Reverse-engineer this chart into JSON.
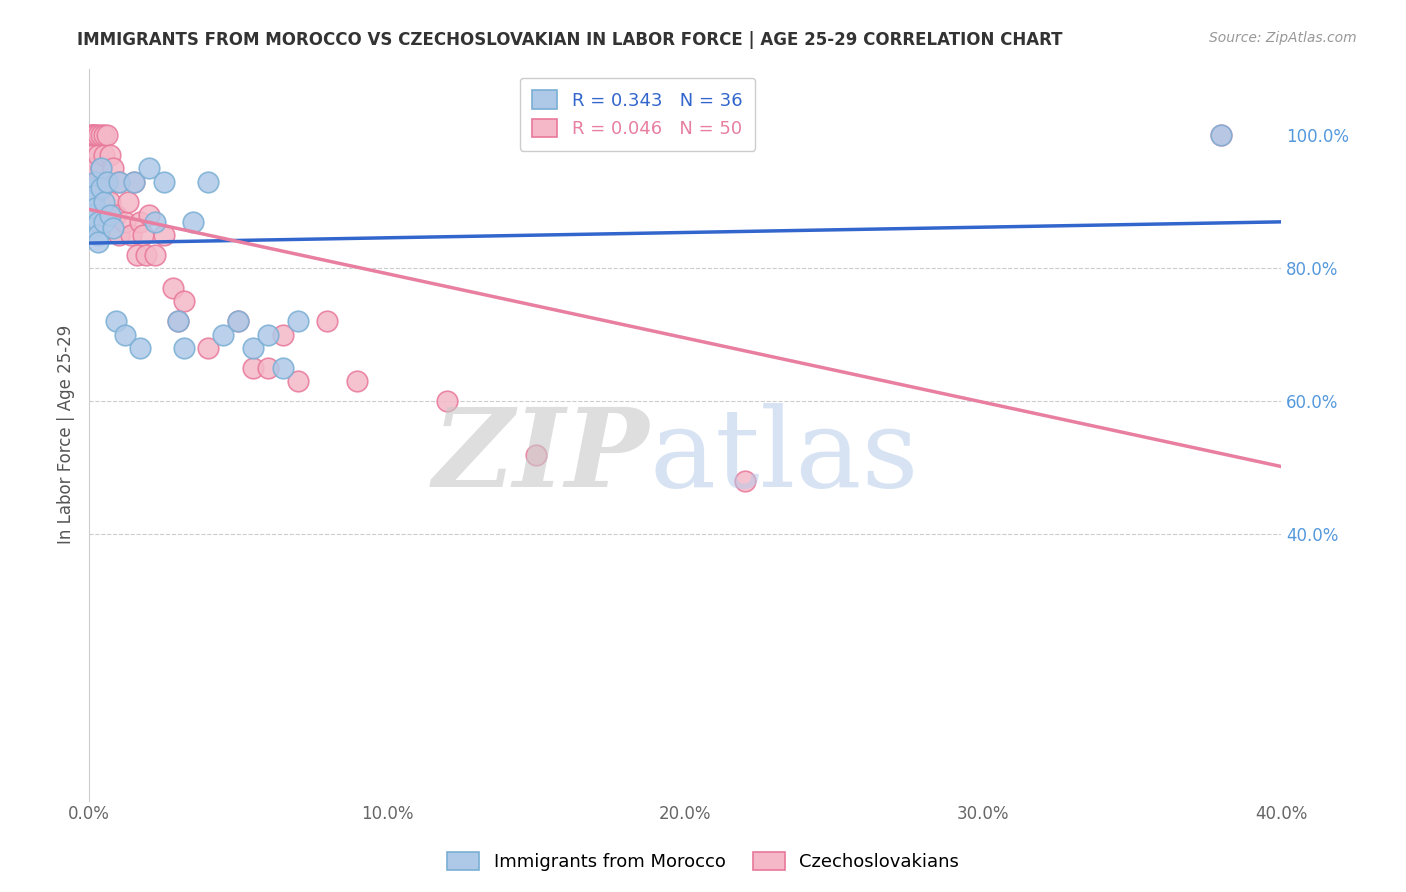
{
  "title": "IMMIGRANTS FROM MOROCCO VS CZECHOSLOVAKIAN IN LABOR FORCE | AGE 25-29 CORRELATION CHART",
  "source": "Source: ZipAtlas.com",
  "ylabel": "In Labor Force | Age 25-29",
  "xlim": [
    0.0,
    0.4
  ],
  "ylim": [
    0.0,
    1.1
  ],
  "xtick_labels": [
    "0.0%",
    "10.0%",
    "20.0%",
    "30.0%",
    "40.0%"
  ],
  "xtick_vals": [
    0.0,
    0.1,
    0.2,
    0.3,
    0.4
  ],
  "ytick_labels_right": [
    "100.0%",
    "80.0%",
    "60.0%",
    "40.0%"
  ],
  "ytick_vals_right": [
    1.0,
    0.8,
    0.6,
    0.4
  ],
  "grid_yticks": [
    0.8,
    0.6,
    0.4
  ],
  "grid_color": "#cccccc",
  "background_color": "#ffffff",
  "morocco_color": "#aec8e8",
  "morocco_edge_color": "#7aafd4",
  "czech_color": "#f4b8c8",
  "czech_edge_color": "#e8789a",
  "morocco_R": 0.343,
  "morocco_N": 36,
  "czech_R": 0.046,
  "czech_N": 50,
  "trend_morocco_color": "#3366cc",
  "trend_czech_color": "#e87fa0",
  "legend_label_morocco": "Immigrants from Morocco",
  "legend_label_czech": "Czechoslovakians",
  "morocco_x": [
    0.001,
    0.001,
    0.001,
    0.001,
    0.002,
    0.002,
    0.002,
    0.003,
    0.003,
    0.003,
    0.004,
    0.004,
    0.005,
    0.005,
    0.006,
    0.007,
    0.008,
    0.009,
    0.01,
    0.012,
    0.015,
    0.017,
    0.02,
    0.022,
    0.025,
    0.03,
    0.032,
    0.035,
    0.04,
    0.045,
    0.05,
    0.055,
    0.06,
    0.065,
    0.07,
    0.38
  ],
  "morocco_y": [
    0.92,
    0.9,
    0.88,
    0.86,
    0.93,
    0.91,
    0.89,
    0.87,
    0.85,
    0.84,
    0.95,
    0.92,
    0.9,
    0.87,
    0.93,
    0.88,
    0.86,
    0.72,
    0.93,
    0.7,
    0.93,
    0.68,
    0.95,
    0.87,
    0.93,
    0.72,
    0.68,
    0.87,
    0.93,
    0.7,
    0.72,
    0.68,
    0.7,
    0.65,
    0.72,
    1.0
  ],
  "czech_x": [
    0.001,
    0.001,
    0.001,
    0.001,
    0.001,
    0.002,
    0.002,
    0.002,
    0.003,
    0.003,
    0.003,
    0.004,
    0.004,
    0.005,
    0.005,
    0.005,
    0.006,
    0.006,
    0.007,
    0.007,
    0.008,
    0.009,
    0.01,
    0.01,
    0.012,
    0.013,
    0.014,
    0.015,
    0.016,
    0.017,
    0.018,
    0.019,
    0.02,
    0.022,
    0.025,
    0.028,
    0.03,
    0.032,
    0.04,
    0.05,
    0.055,
    0.06,
    0.065,
    0.07,
    0.08,
    0.09,
    0.12,
    0.15,
    0.22,
    0.38
  ],
  "czech_y": [
    1.0,
    1.0,
    1.0,
    0.97,
    0.95,
    1.0,
    1.0,
    0.95,
    1.0,
    0.97,
    0.93,
    1.0,
    0.95,
    1.0,
    0.97,
    0.93,
    1.0,
    0.93,
    0.97,
    0.9,
    0.95,
    0.88,
    0.93,
    0.85,
    0.87,
    0.9,
    0.85,
    0.93,
    0.82,
    0.87,
    0.85,
    0.82,
    0.88,
    0.82,
    0.85,
    0.77,
    0.72,
    0.75,
    0.68,
    0.72,
    0.65,
    0.65,
    0.7,
    0.63,
    0.72,
    0.63,
    0.6,
    0.52,
    0.48,
    1.0
  ]
}
